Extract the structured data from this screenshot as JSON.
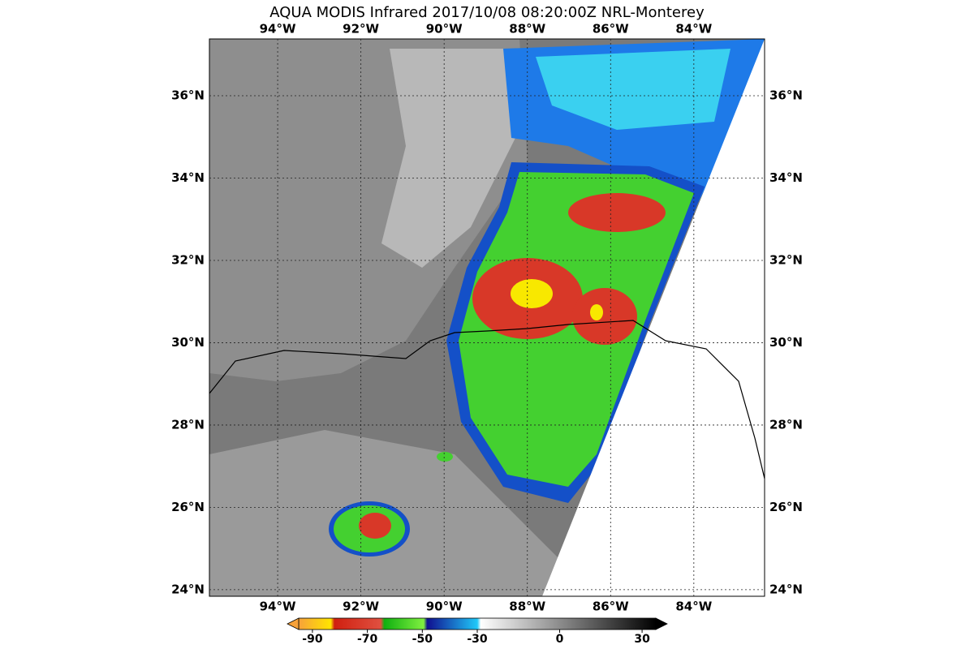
{
  "title": "AQUA MODIS Infrared 2017/10/08 08:20:00Z NRL-Monterey",
  "map": {
    "xlim": [
      -95.64,
      -82.3
    ],
    "ylim": [
      23.84,
      37.38
    ],
    "xticks": [
      {
        "value": -94,
        "label": "94°W"
      },
      {
        "value": -92,
        "label": "92°W"
      },
      {
        "value": -90,
        "label": "90°W"
      },
      {
        "value": -88,
        "label": "88°W"
      },
      {
        "value": -86,
        "label": "86°W"
      },
      {
        "value": -84,
        "label": "84°W"
      }
    ],
    "yticks": [
      {
        "value": 36,
        "label": "36°N"
      },
      {
        "value": 34,
        "label": "34°N"
      },
      {
        "value": 32,
        "label": "32°N"
      },
      {
        "value": 30,
        "label": "30°N"
      },
      {
        "value": 28,
        "label": "28°N"
      },
      {
        "value": 26,
        "label": "26°N"
      },
      {
        "value": 24,
        "label": "24°N"
      }
    ]
  },
  "colorbar": {
    "lim": [
      -95,
      35
    ],
    "ticks": [
      -90,
      -70,
      -50,
      -30,
      0,
      30
    ]
  }
}
